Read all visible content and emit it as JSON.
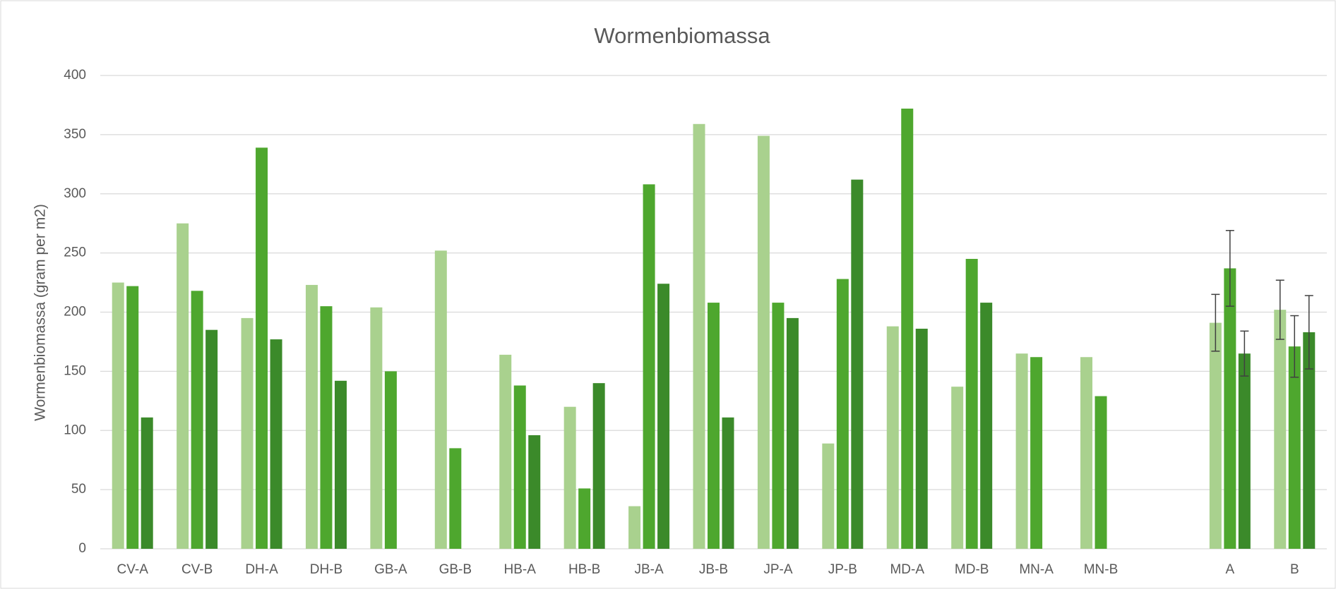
{
  "chart_data": {
    "type": "bar",
    "title": "Wormenbiomassa",
    "y_label": "Wormenbiomassa (gram per m2)",
    "categories": [
      "CV-A",
      "CV-B",
      "DH-A",
      "DH-B",
      "GB-A",
      "GB-B",
      "HB-A",
      "HB-B",
      "JB-A",
      "JB-B",
      "JP-A",
      "JP-B",
      "MD-A",
      "MD-B",
      "MN-A",
      "MN-B",
      null,
      "A",
      "B"
    ],
    "series": [
      {
        "color": "#a9d18e",
        "values": [
          225,
          275,
          195,
          223,
          204,
          252,
          164,
          120,
          36,
          359,
          349,
          89,
          188,
          137,
          165,
          162,
          null,
          191,
          202
        ],
        "errors": [
          null,
          null,
          null,
          null,
          null,
          null,
          null,
          null,
          null,
          null,
          null,
          null,
          null,
          null,
          null,
          null,
          null,
          24,
          25
        ]
      },
      {
        "color": "#4ea72e",
        "values": [
          222,
          218,
          339,
          205,
          150,
          85,
          138,
          51,
          308,
          208,
          208,
          228,
          372,
          245,
          162,
          129,
          null,
          237,
          171
        ],
        "errors": [
          null,
          null,
          null,
          null,
          null,
          null,
          null,
          null,
          null,
          null,
          null,
          null,
          null,
          null,
          null,
          null,
          null,
          32,
          26
        ]
      },
      {
        "color": "#3b8a2a",
        "values": [
          111,
          185,
          177,
          142,
          null,
          null,
          96,
          140,
          224,
          111,
          195,
          312,
          186,
          208,
          null,
          null,
          null,
          165,
          183
        ],
        "errors": [
          null,
          null,
          null,
          null,
          null,
          null,
          null,
          null,
          null,
          null,
          null,
          null,
          null,
          null,
          null,
          null,
          null,
          19,
          31
        ]
      }
    ],
    "ylim": [
      0,
      400
    ],
    "yticks": [
      0,
      50,
      100,
      150,
      200,
      250,
      300,
      350,
      400
    ],
    "grid": true
  }
}
